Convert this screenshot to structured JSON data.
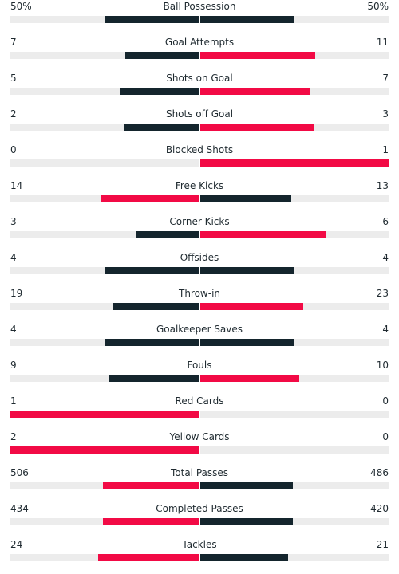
{
  "colors": {
    "leader": "#f20a45",
    "other": "#14252d",
    "track": "#ececec"
  },
  "stats": [
    {
      "label": "Ball Possession",
      "home": "50%",
      "away": "50%",
      "home_share": 0.5,
      "away_share": 0.5,
      "home_color": "#14252d",
      "away_color": "#14252d"
    },
    {
      "label": "Goal Attempts",
      "home": "7",
      "away": "11",
      "home_share": 0.3889,
      "away_share": 0.6111,
      "home_color": "#14252d",
      "away_color": "#f20a45"
    },
    {
      "label": "Shots on Goal",
      "home": "5",
      "away": "7",
      "home_share": 0.4167,
      "away_share": 0.5833,
      "home_color": "#14252d",
      "away_color": "#f20a45"
    },
    {
      "label": "Shots off Goal",
      "home": "2",
      "away": "3",
      "home_share": 0.4,
      "away_share": 0.6,
      "home_color": "#14252d",
      "away_color": "#f20a45"
    },
    {
      "label": "Blocked Shots",
      "home": "0",
      "away": "1",
      "home_share": 0.0,
      "away_share": 1.0,
      "home_color": "#14252d",
      "away_color": "#f20a45"
    },
    {
      "label": "Free Kicks",
      "home": "14",
      "away": "13",
      "home_share": 0.5185,
      "away_share": 0.4815,
      "home_color": "#f20a45",
      "away_color": "#14252d"
    },
    {
      "label": "Corner Kicks",
      "home": "3",
      "away": "6",
      "home_share": 0.3333,
      "away_share": 0.6667,
      "home_color": "#14252d",
      "away_color": "#f20a45"
    },
    {
      "label": "Offsides",
      "home": "4",
      "away": "4",
      "home_share": 0.5,
      "away_share": 0.5,
      "home_color": "#14252d",
      "away_color": "#14252d"
    },
    {
      "label": "Throw-in",
      "home": "19",
      "away": "23",
      "home_share": 0.4524,
      "away_share": 0.5476,
      "home_color": "#14252d",
      "away_color": "#f20a45"
    },
    {
      "label": "Goalkeeper Saves",
      "home": "4",
      "away": "4",
      "home_share": 0.5,
      "away_share": 0.5,
      "home_color": "#14252d",
      "away_color": "#14252d"
    },
    {
      "label": "Fouls",
      "home": "9",
      "away": "10",
      "home_share": 0.4737,
      "away_share": 0.5263,
      "home_color": "#14252d",
      "away_color": "#f20a45"
    },
    {
      "label": "Red Cards",
      "home": "1",
      "away": "0",
      "home_share": 1.0,
      "away_share": 0.0,
      "home_color": "#f20a45",
      "away_color": "#14252d"
    },
    {
      "label": "Yellow Cards",
      "home": "2",
      "away": "0",
      "home_share": 1.0,
      "away_share": 0.0,
      "home_color": "#f20a45",
      "away_color": "#14252d"
    },
    {
      "label": "Total Passes",
      "home": "506",
      "away": "486",
      "home_share": 0.5101,
      "away_share": 0.4899,
      "home_color": "#f20a45",
      "away_color": "#14252d"
    },
    {
      "label": "Completed Passes",
      "home": "434",
      "away": "420",
      "home_share": 0.5082,
      "away_share": 0.4918,
      "home_color": "#f20a45",
      "away_color": "#14252d"
    },
    {
      "label": "Tackles",
      "home": "24",
      "away": "21",
      "home_share": 0.5333,
      "away_share": 0.4667,
      "home_color": "#f20a45",
      "away_color": "#14252d"
    }
  ]
}
